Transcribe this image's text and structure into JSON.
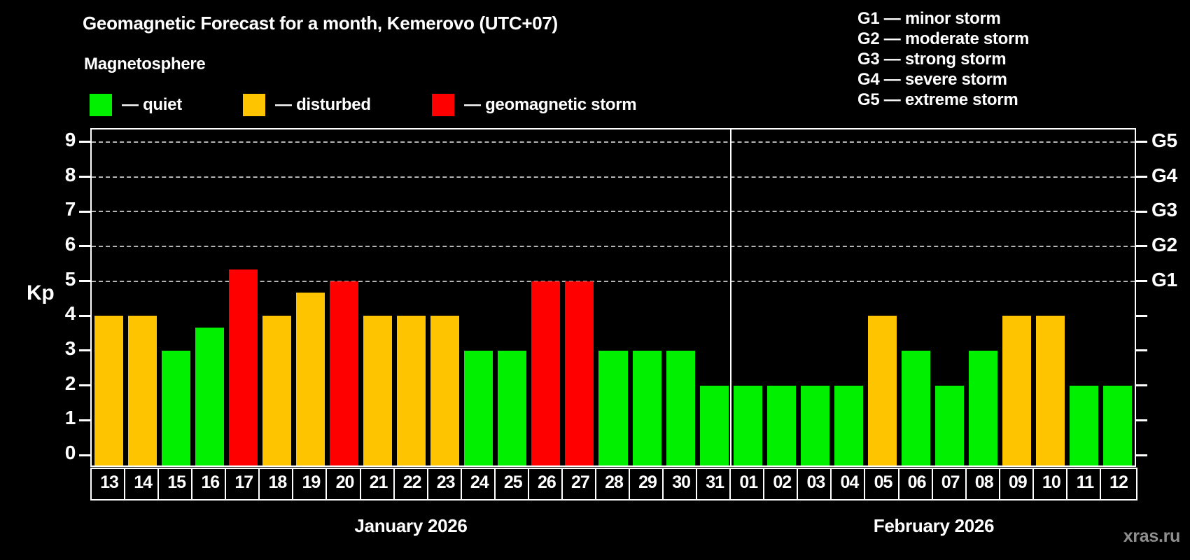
{
  "title": "Geomagnetic Forecast for a month, Kemerovo (UTC+07)",
  "subtitle": "Magnetosphere",
  "legend": [
    {
      "key": "quiet",
      "label": "— quiet"
    },
    {
      "key": "disturbed",
      "label": "— disturbed"
    },
    {
      "key": "storm",
      "label": "— geomagnetic storm"
    }
  ],
  "colors": {
    "quiet": "#00f000",
    "disturbed": "#ffc400",
    "storm": "#ff0000",
    "background": "#000000",
    "text": "#ffffff",
    "gridline": "#b4b4b4",
    "watermark": "#8f8f8f"
  },
  "g_scale_legend": [
    "G1 — minor storm",
    "G2 — moderate storm",
    "G3 — strong storm",
    "G4 — severe storm",
    "G5 — extreme storm"
  ],
  "watermark": "xras.ru",
  "chart_data": {
    "type": "bar",
    "ylabel": "Kp",
    "ylim": [
      -0.35,
      9.4
    ],
    "y_ticks": [
      0,
      1,
      2,
      3,
      4,
      5,
      6,
      7,
      8,
      9
    ],
    "gridlines_at": [
      5,
      6,
      7,
      8,
      9
    ],
    "legend_position": "top",
    "right_axis_labels": [
      {
        "kp": 5,
        "label": "G1"
      },
      {
        "kp": 6,
        "label": "G2"
      },
      {
        "kp": 7,
        "label": "G3"
      },
      {
        "kp": 8,
        "label": "G4"
      },
      {
        "kp": 9,
        "label": "G5"
      }
    ],
    "months": [
      {
        "label": "January 2026",
        "days": [
          {
            "day": "13",
            "kp": 4,
            "level": "disturbed"
          },
          {
            "day": "14",
            "kp": 4,
            "level": "disturbed"
          },
          {
            "day": "15",
            "kp": 3,
            "level": "quiet"
          },
          {
            "day": "16",
            "kp": 3.67,
            "level": "quiet"
          },
          {
            "day": "17",
            "kp": 5.33,
            "level": "storm"
          },
          {
            "day": "18",
            "kp": 4,
            "level": "disturbed"
          },
          {
            "day": "19",
            "kp": 4.67,
            "level": "disturbed"
          },
          {
            "day": "20",
            "kp": 5,
            "level": "storm"
          },
          {
            "day": "21",
            "kp": 4,
            "level": "disturbed"
          },
          {
            "day": "22",
            "kp": 4,
            "level": "disturbed"
          },
          {
            "day": "23",
            "kp": 4,
            "level": "disturbed"
          },
          {
            "day": "24",
            "kp": 3,
            "level": "quiet"
          },
          {
            "day": "25",
            "kp": 3,
            "level": "quiet"
          },
          {
            "day": "26",
            "kp": 5,
            "level": "storm"
          },
          {
            "day": "27",
            "kp": 5,
            "level": "storm"
          },
          {
            "day": "28",
            "kp": 3,
            "level": "quiet"
          },
          {
            "day": "29",
            "kp": 3,
            "level": "quiet"
          },
          {
            "day": "30",
            "kp": 3,
            "level": "quiet"
          },
          {
            "day": "31",
            "kp": 2,
            "level": "quiet"
          }
        ]
      },
      {
        "label": "February 2026",
        "days": [
          {
            "day": "01",
            "kp": 2,
            "level": "quiet"
          },
          {
            "day": "02",
            "kp": 2,
            "level": "quiet"
          },
          {
            "day": "03",
            "kp": 2,
            "level": "quiet"
          },
          {
            "day": "04",
            "kp": 2,
            "level": "quiet"
          },
          {
            "day": "05",
            "kp": 4,
            "level": "disturbed"
          },
          {
            "day": "06",
            "kp": 3,
            "level": "quiet"
          },
          {
            "day": "07",
            "kp": 2,
            "level": "quiet"
          },
          {
            "day": "08",
            "kp": 3,
            "level": "quiet"
          },
          {
            "day": "09",
            "kp": 4,
            "level": "disturbed"
          },
          {
            "day": "10",
            "kp": 4,
            "level": "disturbed"
          },
          {
            "day": "11",
            "kp": 2,
            "level": "quiet"
          },
          {
            "day": "12",
            "kp": 2,
            "level": "quiet"
          }
        ]
      }
    ]
  }
}
